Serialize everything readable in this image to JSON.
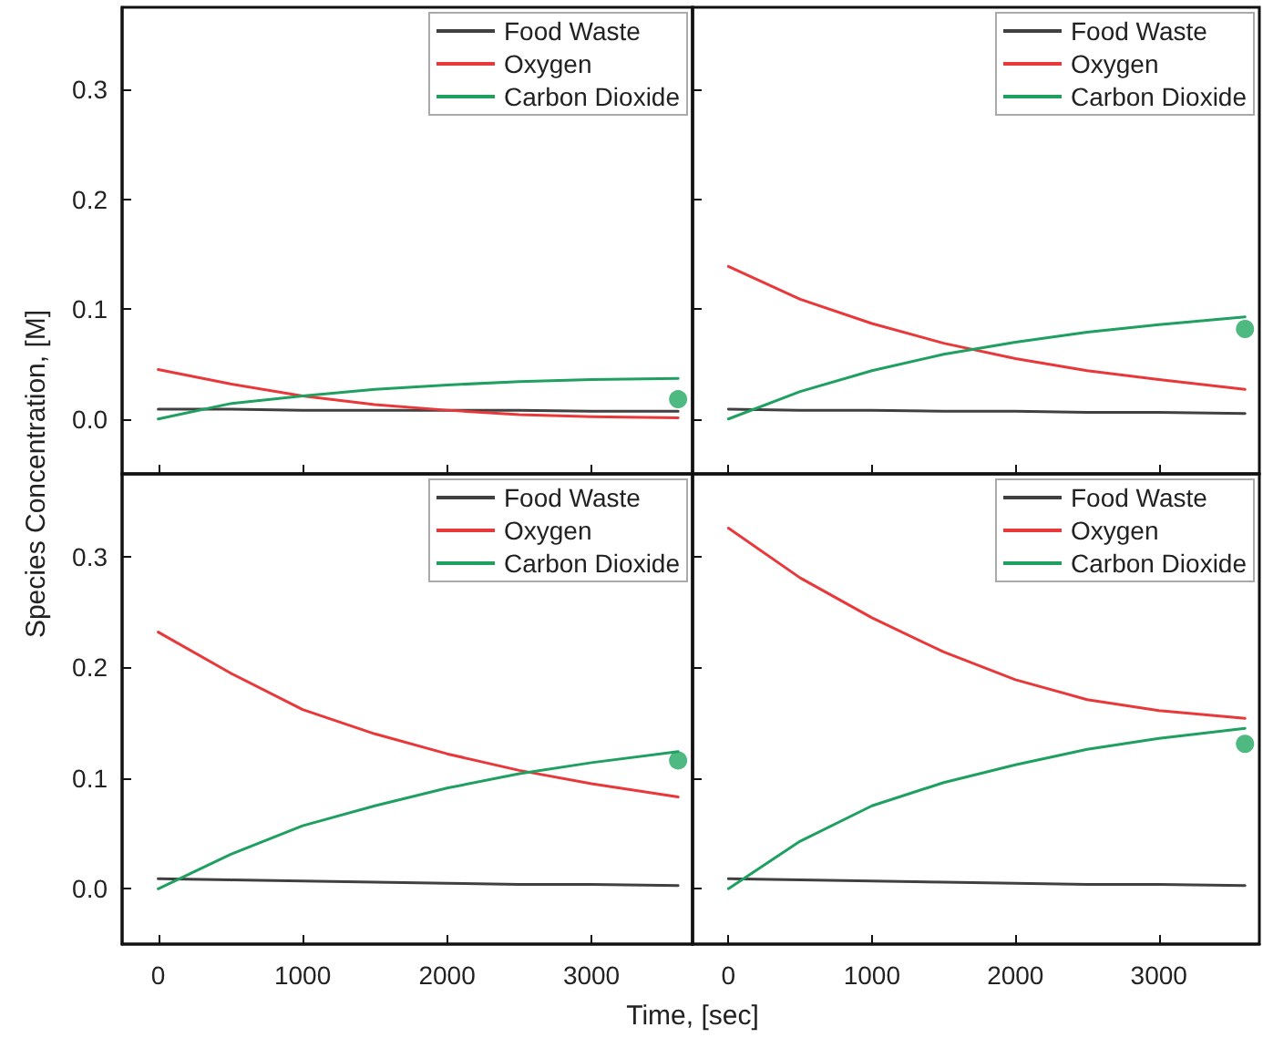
{
  "chart_data": [
    {
      "type": "line",
      "x": [
        0,
        500,
        1000,
        1500,
        2000,
        2500,
        3000,
        3600
      ],
      "xlim": [
        -250,
        3700
      ],
      "ylim": [
        -0.05,
        0.375
      ],
      "xticks": [
        0,
        1000,
        2000,
        3000
      ],
      "yticks": [
        {
          "value": 0,
          "label": "0.0"
        },
        {
          "value": 0.1,
          "label": "0.1"
        },
        {
          "value": 0.2,
          "label": "0.2"
        },
        {
          "value": 0.3,
          "label": "0.3"
        }
      ],
      "tick_labels": "y",
      "legend": "top right",
      "grid": false,
      "marker": "none",
      "line_style": "solid",
      "series": [
        {
          "name": "Food Waste",
          "color": "#404040",
          "values": [
            0.009,
            0.009,
            0.008,
            0.008,
            0.008,
            0.008,
            0.007,
            0.007
          ]
        },
        {
          "name": "Oxygen",
          "color": "#e8383a",
          "values": [
            0.045,
            0.032,
            0.021,
            0.013,
            0.008,
            0.004,
            0.002,
            0.001
          ]
        },
        {
          "name": "Carbon Dioxide",
          "color": "#1fa060",
          "values": [
            0,
            0.014,
            0.021,
            0.027,
            0.031,
            0.034,
            0.036,
            0.037
          ]
        },
        {
          "type": "scatter",
          "marker": "circle",
          "color": "#22a862",
          "values": [
            null,
            null,
            null,
            null,
            null,
            null,
            null,
            0.018
          ]
        }
      ]
    },
    {
      "type": "line",
      "x": [
        0,
        500,
        1000,
        1500,
        2000,
        2500,
        3000,
        3600
      ],
      "xlim": [
        -250,
        3700
      ],
      "ylim": [
        -0.05,
        0.375
      ],
      "xticks": [
        0,
        1000,
        2000,
        3000
      ],
      "yticks": [
        {
          "value": 0,
          "label": null
        },
        {
          "value": 0.1,
          "label": null
        },
        {
          "value": 0.2,
          "label": null
        },
        {
          "value": 0.3,
          "label": null
        }
      ],
      "tick_labels": false,
      "legend": "top right",
      "grid": false,
      "marker": "none",
      "line_style": "solid",
      "series": [
        {
          "name": "Food Waste",
          "color": "#404040",
          "values": [
            0.009,
            0.008,
            0.008,
            0.007,
            0.007,
            0.006,
            0.006,
            0.005
          ]
        },
        {
          "name": "Oxygen",
          "color": "#e8383a",
          "values": [
            0.139,
            0.109,
            0.087,
            0.069,
            0.055,
            0.044,
            0.036,
            0.027
          ]
        },
        {
          "name": "Carbon Dioxide",
          "color": "#1fa060",
          "values": [
            0,
            0.025,
            0.044,
            0.059,
            0.07,
            0.079,
            0.086,
            0.093
          ]
        },
        {
          "type": "scatter",
          "marker": "circle",
          "color": "#22a862",
          "values": [
            null,
            null,
            null,
            null,
            null,
            null,
            null,
            0.082
          ]
        }
      ]
    },
    {
      "type": "line",
      "x": [
        0,
        500,
        1000,
        1500,
        2000,
        2500,
        3000,
        3600
      ],
      "xlim": [
        -250,
        3700
      ],
      "ylim": [
        -0.05,
        0.375
      ],
      "xticks": [
        0,
        1000,
        2000,
        3000
      ],
      "yticks": [
        {
          "value": 0,
          "label": "0.0"
        },
        {
          "value": 0.1,
          "label": "0.1"
        },
        {
          "value": 0.2,
          "label": "0.2"
        },
        {
          "value": 0.3,
          "label": "0.3"
        }
      ],
      "xlabel": "Time, [sec]",
      "ylabel": "Species Concentration, [M]",
      "legend": "top right",
      "grid": false,
      "marker": "none",
      "line_style": "solid",
      "series": [
        {
          "name": "Food Waste",
          "color": "#404040",
          "values": [
            0.009,
            0.008,
            0.007,
            0.006,
            0.005,
            0.004,
            0.004,
            0.003
          ]
        },
        {
          "name": "Oxygen",
          "color": "#e8383a",
          "values": [
            0.232,
            0.195,
            0.162,
            0.14,
            0.122,
            0.107,
            0.095,
            0.083
          ]
        },
        {
          "name": "Carbon Dioxide",
          "color": "#1fa060",
          "values": [
            0,
            0.031,
            0.057,
            0.075,
            0.091,
            0.104,
            0.114,
            0.124
          ]
        },
        {
          "type": "scatter",
          "marker": "circle",
          "color": "#22a862",
          "values": [
            null,
            null,
            null,
            null,
            null,
            null,
            null,
            0.116
          ]
        }
      ]
    },
    {
      "type": "line",
      "x": [
        0,
        500,
        1000,
        1500,
        2000,
        2500,
        3000,
        3600
      ],
      "xlim": [
        -250,
        3700
      ],
      "ylim": [
        -0.05,
        0.375
      ],
      "xticks": [
        0,
        1000,
        2000,
        3000
      ],
      "yticks": [
        {
          "value": 0,
          "label": null
        },
        {
          "value": 0.1,
          "label": null
        },
        {
          "value": 0.2,
          "label": null
        },
        {
          "value": 0.3,
          "label": null
        }
      ],
      "tick_labels": "x",
      "legend": "top right",
      "grid": false,
      "marker": "none",
      "line_style": "solid",
      "series": [
        {
          "name": "Food Waste",
          "color": "#404040",
          "values": [
            0.009,
            0.008,
            0.007,
            0.006,
            0.005,
            0.004,
            0.004,
            0.003
          ]
        },
        {
          "name": "Oxygen",
          "color": "#e8383a",
          "values": [
            0.326,
            0.281,
            0.245,
            0.214,
            0.189,
            0.171,
            0.161,
            0.154
          ]
        },
        {
          "name": "Carbon Dioxide",
          "color": "#1fa060",
          "values": [
            0,
            0.043,
            0.075,
            0.096,
            0.112,
            0.126,
            0.136,
            0.145
          ]
        },
        {
          "type": "scatter",
          "marker": "circle",
          "color": "#22a862",
          "values": [
            null,
            null,
            null,
            null,
            null,
            null,
            null,
            0.131
          ]
        }
      ]
    }
  ]
}
